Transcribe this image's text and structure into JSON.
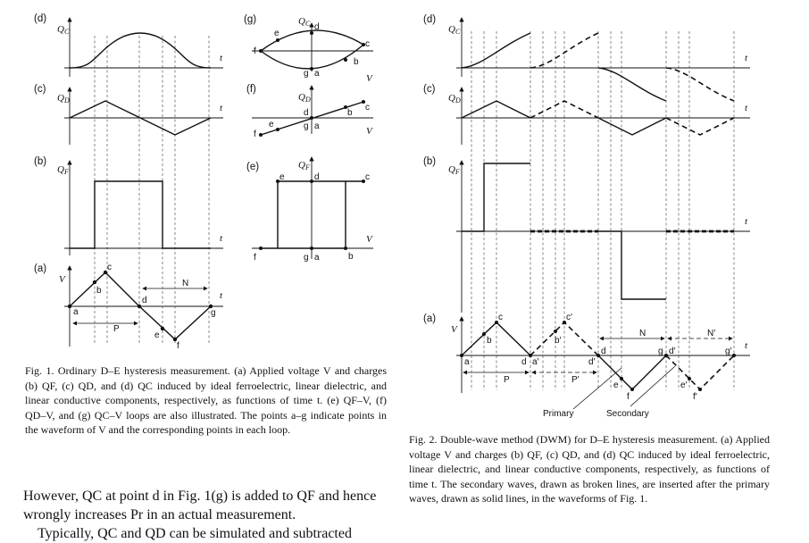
{
  "fig1": {
    "panel_d_label": "(d)",
    "panel_c_label": "(c)",
    "panel_b_label": "(b)",
    "panel_a_label": "(a)",
    "panel_g_label": "(g)",
    "panel_f_label": "(f)",
    "panel_e_label": "(e)",
    "qc_axis": "QC",
    "qd_axis": "QD",
    "qf_axis": "QF",
    "v_axis": "V",
    "t_axis": "t",
    "points": [
      "a",
      "b",
      "c",
      "d",
      "e",
      "f",
      "g"
    ],
    "period_label": "P",
    "negative_label": "N"
  },
  "fig2": {
    "panel_d_label": "(d)",
    "panel_c_label": "(c)",
    "panel_b_label": "(b)",
    "panel_a_label": "(a)",
    "qc_axis": "QC",
    "qd_axis": "QD",
    "qf_axis": "QF",
    "v_axis": "V",
    "t_axis": "t",
    "primary_label": "Primary",
    "secondary_label": "Secondary",
    "period_label": "P",
    "period_prime_label": "P′",
    "negative_label": "N",
    "negative_prime_label": "N′"
  },
  "caption1": {
    "number": "Fig. 1.",
    "text": "Ordinary D–E hysteresis measurement. (a) Applied voltage V and charges (b) QF, (c) QD, and (d) QC induced by ideal ferroelectric, linear dielectric, and linear conductive components, respectively, as functions of time t. (e) QF–V, (f) QD–V, and (g) QC–V loops are also illustrated. The points a–g indicate points in the waveform of V and the corresponding points in each loop."
  },
  "caption2": {
    "number": "Fig. 2.",
    "text": "Double-wave method (DWM) for D–E hysteresis measurement. (a) Applied voltage V and charges (b) QF, (c) QD, and (d) QC induced by ideal ferroelectric, linear dielectric, and linear conductive components, respectively, as functions of time t. The secondary waves, drawn as broken lines, are inserted after the primary waves, drawn as solid lines, in the waveforms of Fig. 1."
  },
  "body": {
    "line1": "However, QC at point d in Fig. 1(g) is added to QF and hence wrongly increases Pr in an actual measurement.",
    "line2": "Typically, QC and QD can be simulated and subtracted"
  }
}
